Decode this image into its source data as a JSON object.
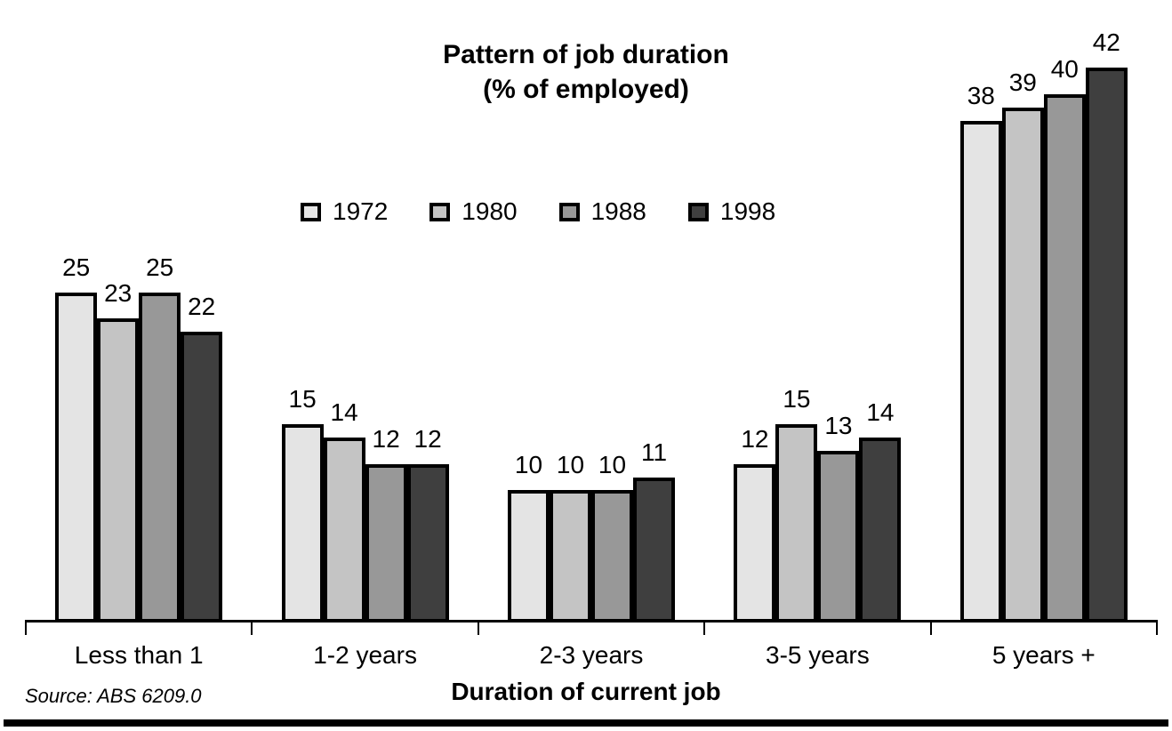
{
  "title": {
    "line1": "Pattern of job duration",
    "line2": "(% of employed)"
  },
  "xaxis_title": "Duration of current job",
  "source": "Source: ABS 6209.0",
  "chart_data": {
    "type": "bar",
    "title": "Pattern of job duration (% of employed)",
    "categories": [
      "Less than 1",
      "1-2 years",
      "2-3 years",
      "3-5 years",
      "5 years +"
    ],
    "series": [
      {
        "name": "1972",
        "color": "#e4e4e4",
        "values": [
          25,
          15,
          10,
          12,
          38
        ]
      },
      {
        "name": "1980",
        "color": "#c4c4c4",
        "values": [
          23,
          14,
          10,
          15,
          39
        ]
      },
      {
        "name": "1988",
        "color": "#989898",
        "values": [
          25,
          12,
          10,
          13,
          40
        ]
      },
      {
        "name": "1998",
        "color": "#3f3f3f",
        "values": [
          22,
          12,
          11,
          14,
          42
        ]
      }
    ],
    "xlabel": "Duration of current job",
    "ylabel": "% of employed",
    "ylim": [
      0,
      45
    ],
    "grid": false,
    "yaxis_visible": false,
    "legend_position": "top-center",
    "data_labels": true,
    "bar_border_color": "#000000",
    "source": "Source: ABS 6209.0"
  }
}
